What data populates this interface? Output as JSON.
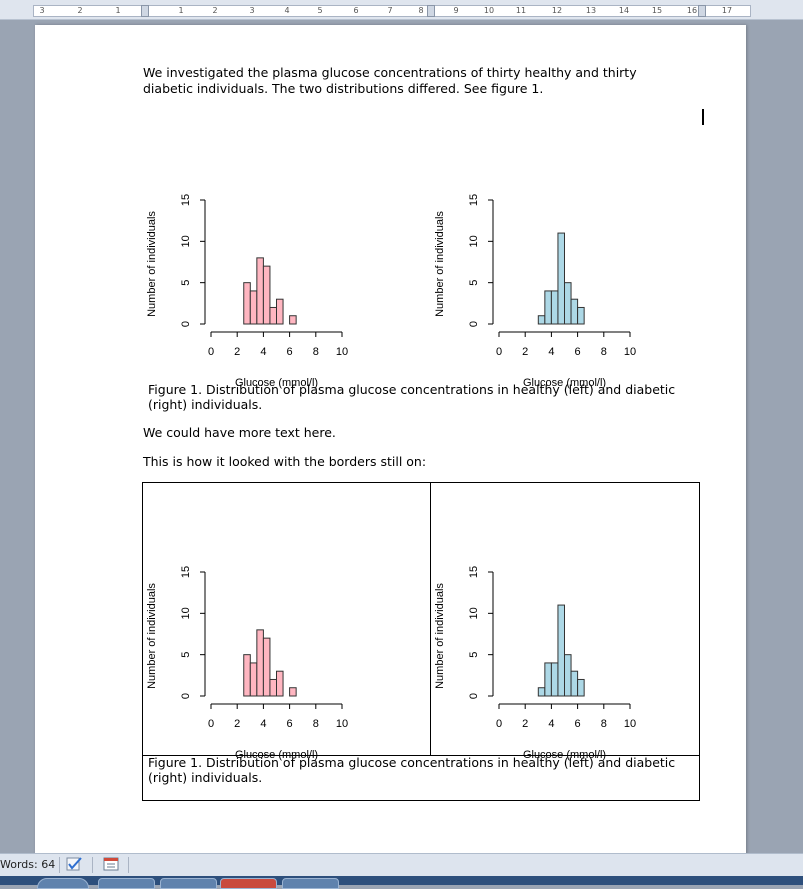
{
  "ruler": {
    "labels": [
      "3",
      "2",
      "1",
      "1",
      "2",
      "3",
      "4",
      "5",
      "6",
      "7",
      "8",
      "9",
      "10",
      "11",
      "12",
      "13",
      "14",
      "15",
      "16",
      "17"
    ]
  },
  "document": {
    "paragraph1_line1": "We investigated the plasma glucose concentrations of thirty healthy and thirty",
    "paragraph1_line2": "diabetic individuals. The two distributions differed. See figure 1.",
    "caption_line1": "Figure 1. Distribution of plasma glucose concentrations in healthy (left) and diabetic",
    "caption_line2": "(right) individuals.",
    "paragraph2": "We could have more text here.",
    "paragraph3": "This is how it looked with the borders still on:",
    "caption2_line1": "Figure 1. Distribution of plasma glucose concentrations in healthy (left) and diabetic",
    "caption2_line2": "(right) individuals."
  },
  "colors": {
    "healthy_fill": "#ffb6c1",
    "diabetic_fill": "#add8e6"
  },
  "chart_data": [
    {
      "type": "bar",
      "subtype": "histogram",
      "xlabel": "Glucose (mmol/l)",
      "ylabel": "Number of individuals",
      "xlim": [
        0,
        10
      ],
      "ylim": [
        0,
        15
      ],
      "x_ticks": [
        "0",
        "2",
        "4",
        "6",
        "8",
        "10"
      ],
      "y_ticks": [
        "0",
        "5",
        "10",
        "15"
      ],
      "bin_edges": [
        2.5,
        3.0,
        3.5,
        4.0,
        4.5,
        5.0,
        5.5,
        6.0,
        6.5
      ],
      "values": [
        5,
        4,
        8,
        7,
        2,
        3,
        0,
        1
      ],
      "fill": "#ffb6c1"
    },
    {
      "type": "bar",
      "subtype": "histogram",
      "xlabel": "Glucose (mmol/l)",
      "ylabel": "Number of individuals",
      "xlim": [
        0,
        10
      ],
      "ylim": [
        0,
        15
      ],
      "x_ticks": [
        "0",
        "2",
        "4",
        "6",
        "8",
        "10"
      ],
      "y_ticks": [
        "0",
        "5",
        "10",
        "15"
      ],
      "bin_edges": [
        3.0,
        3.5,
        4.0,
        4.5,
        5.0,
        5.5,
        6.0,
        6.5
      ],
      "values": [
        1,
        4,
        4,
        11,
        5,
        3,
        2
      ],
      "fill": "#add8e6"
    }
  ],
  "status": {
    "words": "Words: 64"
  }
}
